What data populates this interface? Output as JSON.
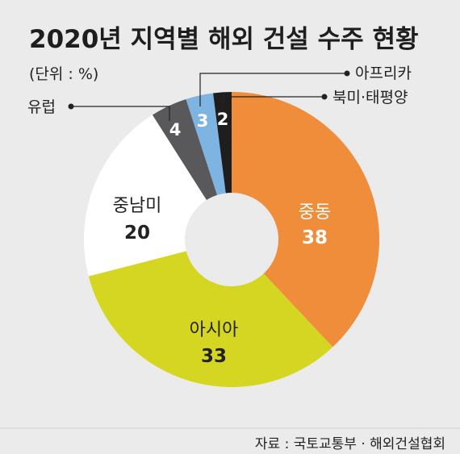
{
  "chart_data": {
    "type": "pie",
    "title": "2020년 지역별 해외 건설 수주 현황",
    "unit_label": "(단위 : %)",
    "source": "자료 : 국토교통부 · 해외건설협회",
    "slices": [
      {
        "label": "중동",
        "value": 38,
        "color": "#ef8d3b"
      },
      {
        "label": "아시아",
        "value": 33,
        "color": "#d5d622"
      },
      {
        "label": "중남미",
        "value": 20,
        "color": "#ffffff"
      },
      {
        "label": "유럽",
        "value": 4,
        "color": "#59595b"
      },
      {
        "label": "아프리카",
        "value": 3,
        "color": "#7db4e2"
      },
      {
        "label": "북미·태평양",
        "value": 2,
        "color": "#1e1e1e"
      }
    ]
  }
}
